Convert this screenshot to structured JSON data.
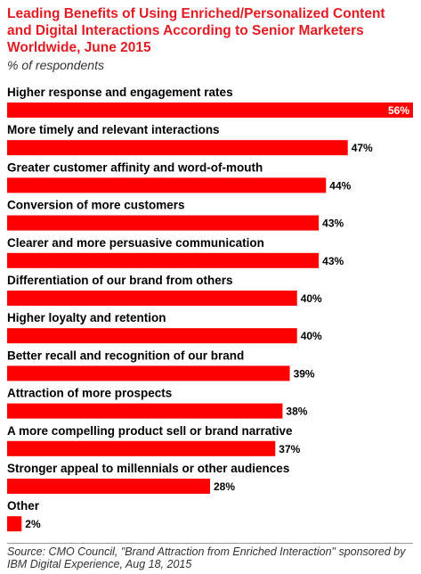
{
  "title": "Leading Benefits of Using Enriched/Personalized Content and Digital Interactions According to Senior Marketers Worldwide, June 2015",
  "subtitle": "% of respondents",
  "source": "Source: CMO Council, \"Brand Attraction from Enriched Interaction\" sponsored by IBM Digital Experience, Aug 18, 2015",
  "colors": {
    "accent": "#e31b23",
    "bar": "#ff0000"
  },
  "chart_data": {
    "type": "bar",
    "orientation": "horizontal",
    "categories": [
      "Higher response and engagement rates",
      "More timely and relevant interactions",
      "Greater customer affinity and word-of-mouth",
      "Conversion of more customers",
      "Clearer and more persuasive communication",
      "Differentiation of our brand from others",
      "Higher loyalty and retention",
      "Better recall and recognition of our brand",
      "Attraction of more prospects",
      "A more compelling product sell or brand narrative",
      "Stronger appeal to millennials or other audiences",
      "Other"
    ],
    "values": [
      56,
      47,
      44,
      43,
      43,
      40,
      40,
      39,
      38,
      37,
      28,
      2
    ],
    "value_labels": [
      "56%",
      "47%",
      "44%",
      "43%",
      "43%",
      "40%",
      "40%",
      "39%",
      "38%",
      "37%",
      "28%",
      "2%"
    ],
    "xlim": [
      0,
      56
    ],
    "grid": false
  }
}
